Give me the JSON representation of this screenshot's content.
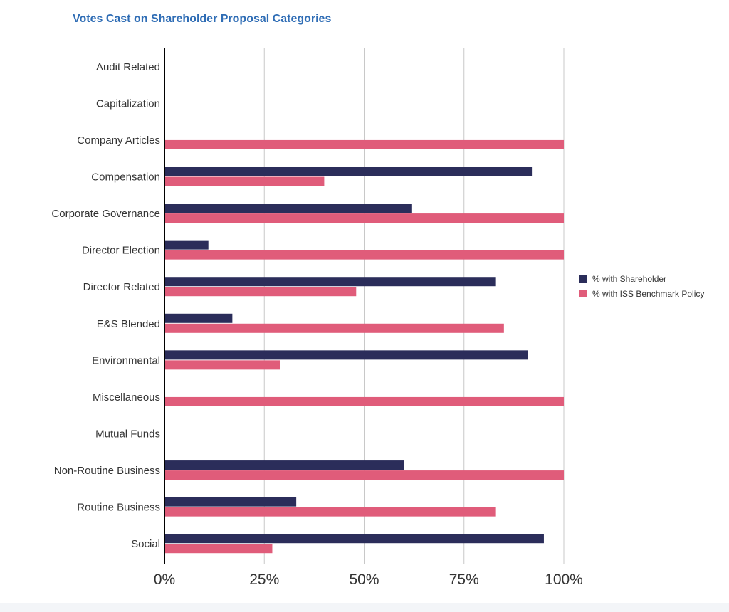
{
  "chart_data": {
    "type": "bar",
    "orientation": "horizontal",
    "title": "Votes Cast on Shareholder Proposal Categories",
    "categories": [
      "Audit Related",
      "Capitalization",
      "Company Articles",
      "Compensation",
      "Corporate Governance",
      "Director Election",
      "Director Related",
      "E&S Blended",
      "Environmental",
      "Miscellaneous",
      "Mutual Funds",
      "Non-Routine Business",
      "Routine Business",
      "Social"
    ],
    "series": [
      {
        "name": "% with Shareholder",
        "color": "#2b2d5a",
        "values": [
          0,
          0,
          0,
          92,
          62,
          11,
          83,
          17,
          91,
          0,
          0,
          60,
          33,
          95
        ]
      },
      {
        "name": "% with ISS Benchmark Policy",
        "color": "#e05c7a",
        "values": [
          0,
          0,
          100,
          40,
          100,
          100,
          48,
          85,
          29,
          100,
          0,
          100,
          83,
          27
        ]
      }
    ],
    "xlim": [
      0,
      100
    ],
    "xticks": [
      "0%",
      "25%",
      "50%",
      "75%",
      "100%"
    ],
    "grid": true,
    "legend_position": "right"
  }
}
